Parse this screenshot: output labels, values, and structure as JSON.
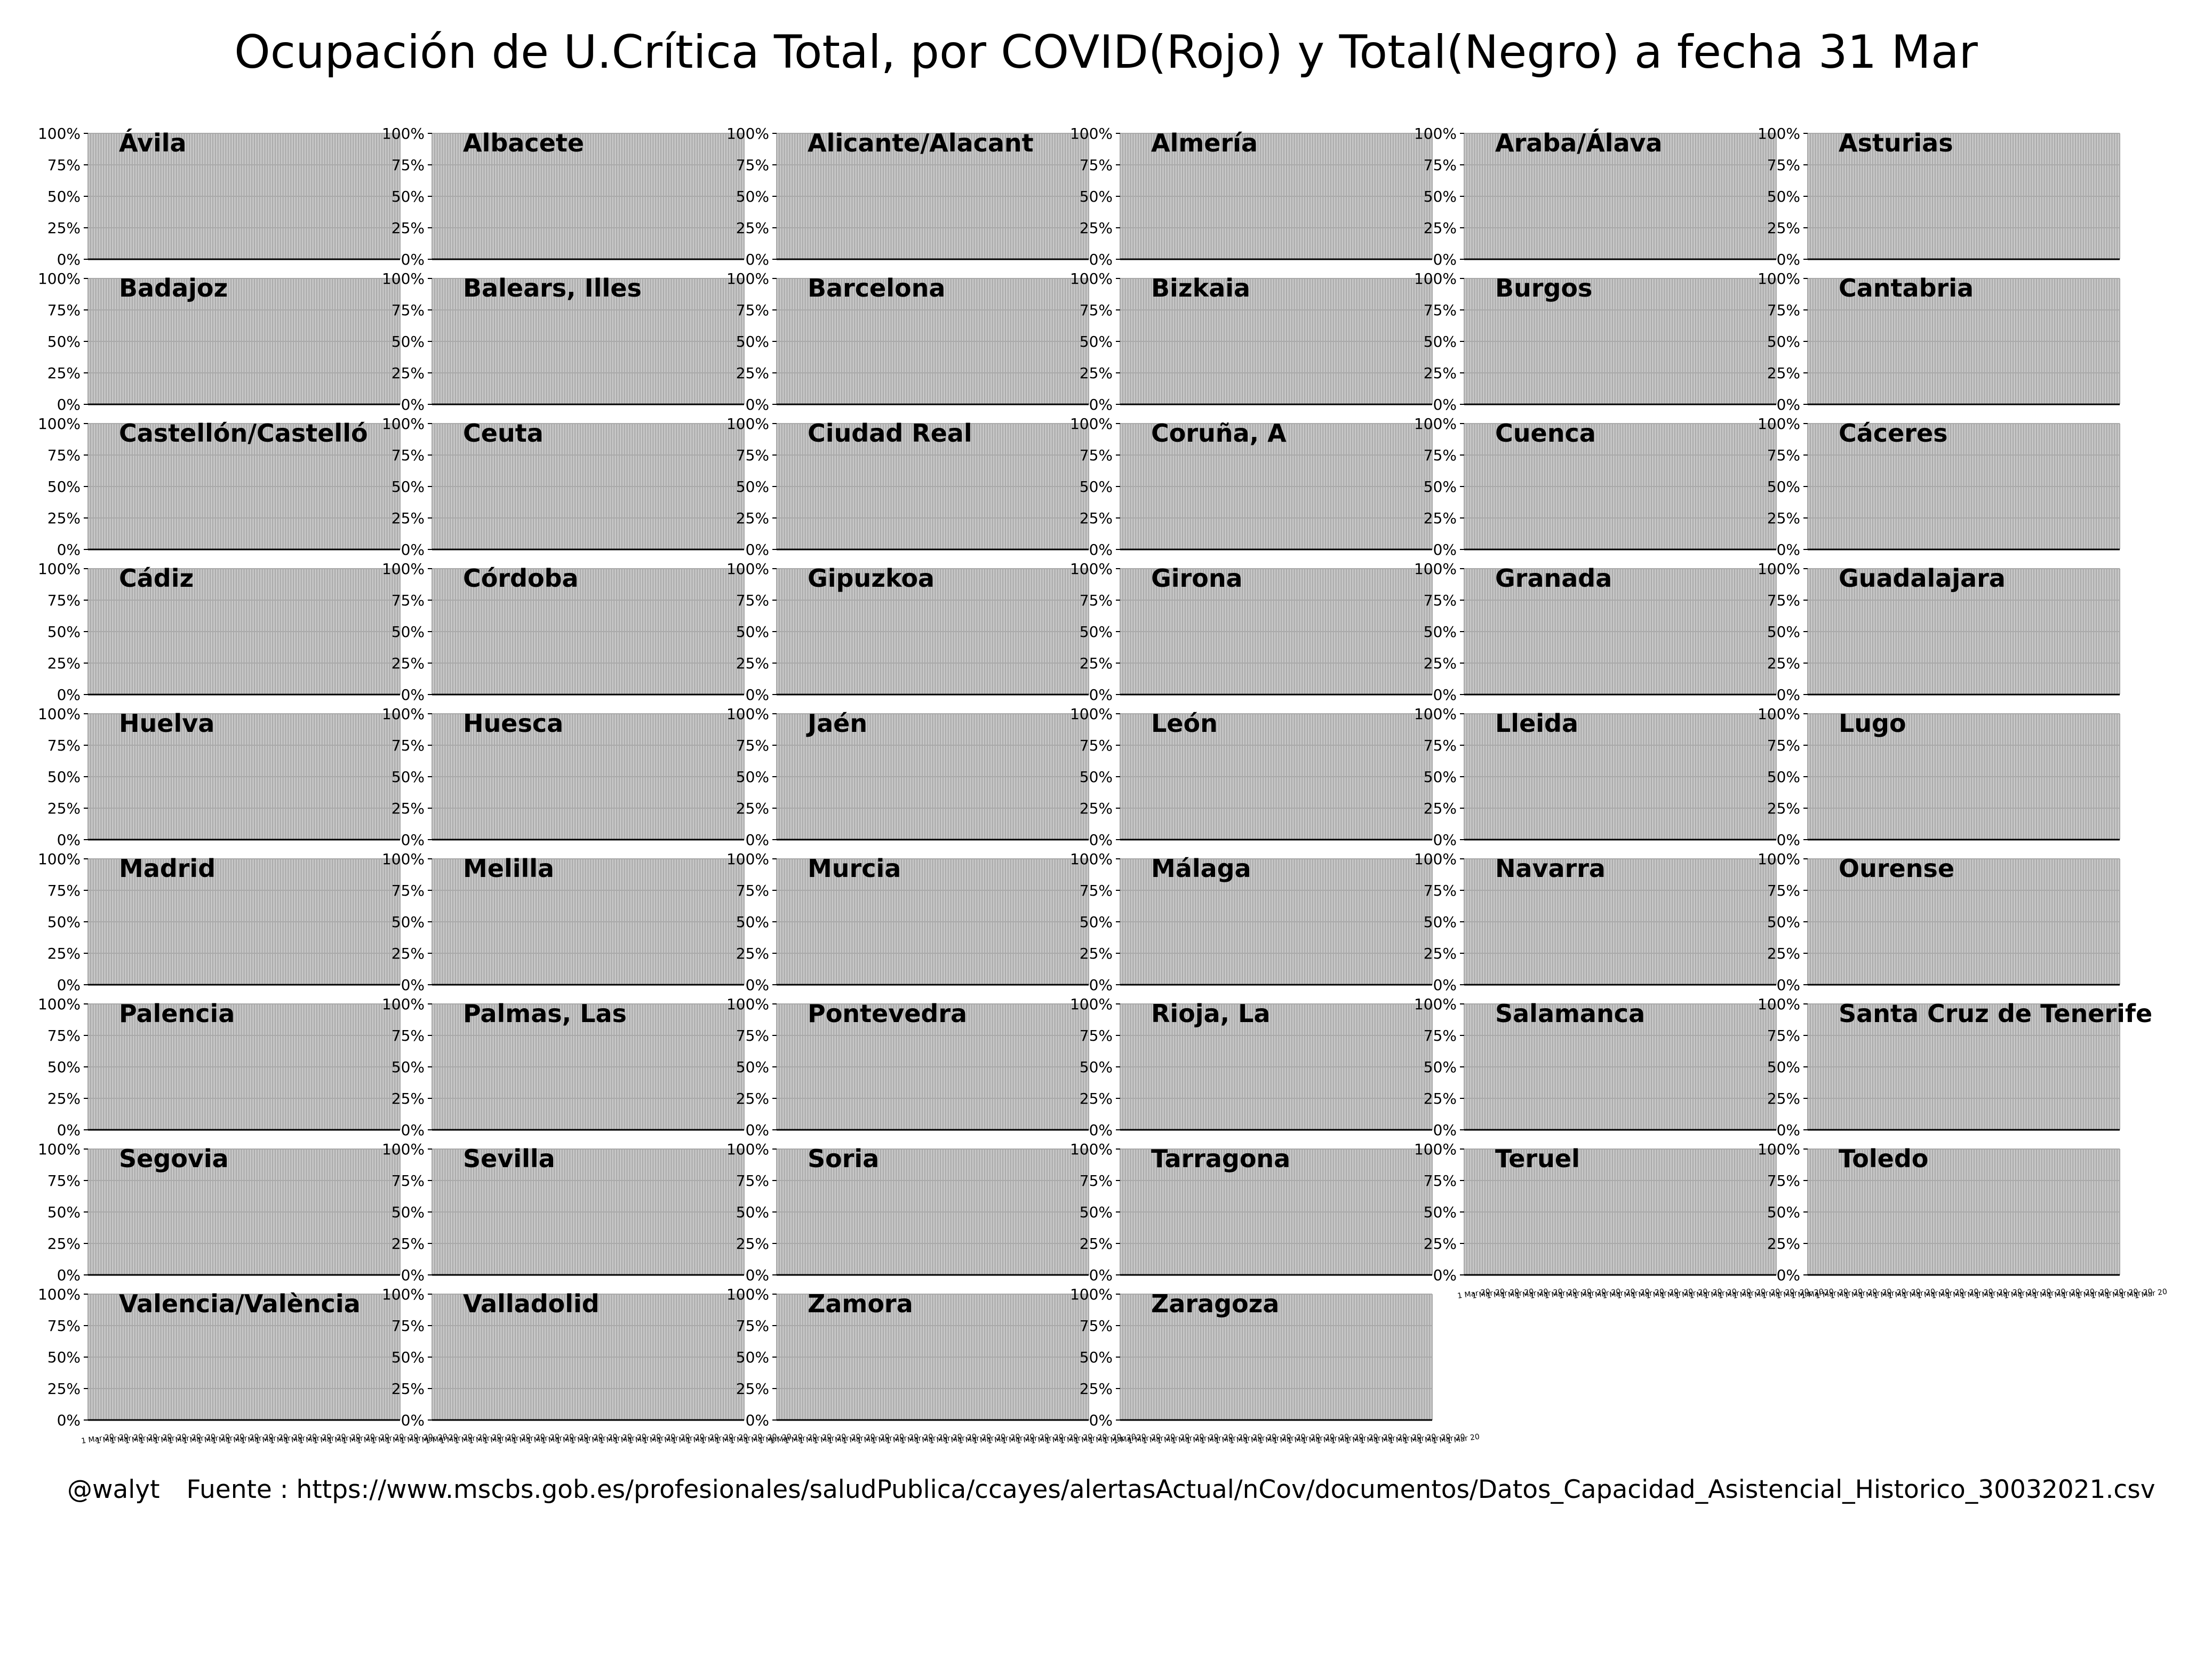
{
  "title": "Ocupación de U.Crítica Total, por COVID(Rojo) y Total(Negro) a fecha 31 Mar",
  "footer": {
    "author": "@walyt",
    "source": "Fuente : https://www.mscbs.gob.es/profesionales/saludPublica/ccayes/alertasActual/nCov/documentos/Datos_Capacidad_Asistencial_Historico_30032021.csv"
  },
  "colors": {
    "panel_background": "#c8c8c8",
    "grid": "#a9a9a9",
    "covid_series": "#ff0000",
    "total_series": "#000000"
  },
  "chart_data": {
    "type": "line",
    "layout": "small-multiples grid, 9 rows x 6 columns",
    "yaxis": {
      "ticks": [
        "0%",
        "25%",
        "50%",
        "75%",
        "100%"
      ],
      "ylim": [
        0,
        100
      ],
      "unit": "%"
    },
    "grid": true,
    "series_legend": [
      "COVID(Rojo)",
      "Total(Negro)"
    ],
    "note_values": "no data lines are visible in any panel; x tick labels are illegible (overlapping)",
    "panels": [
      "Ávila",
      "Albacete",
      "Alicante/Alacant",
      "Almería",
      "Araba/Álava",
      "Asturias",
      "Badajoz",
      "Balears, Illes",
      "Barcelona",
      "Bizkaia",
      "Burgos",
      "Cantabria",
      "Castellón/Castelló",
      "Ceuta",
      "Ciudad Real",
      "Coruña, A",
      "Cuenca",
      "Cáceres",
      "Cádiz",
      "Córdoba",
      "Gipuzkoa",
      "Girona",
      "Granada",
      "Guadalajara",
      "Huelva",
      "Huesca",
      "Jaén",
      "León",
      "Lleida",
      "Lugo",
      "Madrid",
      "Melilla",
      "Murcia",
      "Málaga",
      "Navarra",
      "Ourense",
      "Palencia",
      "Palmas, Las",
      "Pontevedra",
      "Rioja, La",
      "Salamanca",
      "Santa Cruz de Tenerife",
      "Segovia",
      "Sevilla",
      "Soria",
      "Tarragona",
      "Teruel",
      "Toledo",
      "Valencia/València",
      "Valladolid",
      "Zamora",
      "Zaragoza"
    ]
  }
}
